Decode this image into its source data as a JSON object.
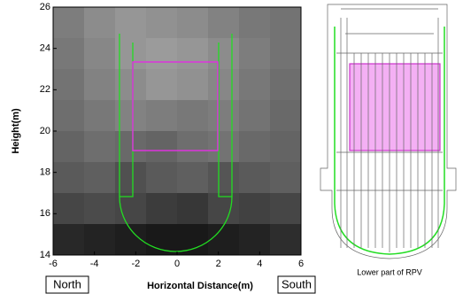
{
  "chart_data": {
    "type": "heatmap",
    "xlabel": "Horizontal Distance(m)",
    "ylabel": "Height(m)",
    "left_label": "North",
    "right_label": "South",
    "caption": "Lower part of RPV",
    "xlim": [
      -6,
      6
    ],
    "ylim": [
      14,
      26
    ],
    "xticks": [
      -6,
      -4,
      -2,
      0,
      2,
      4,
      6
    ],
    "yticks": [
      14,
      16,
      18,
      20,
      22,
      24,
      26
    ],
    "z": [
      [
        125,
        140,
        150,
        145,
        140,
        130,
        120,
        115
      ],
      [
        120,
        135,
        150,
        155,
        150,
        140,
        125,
        115
      ],
      [
        115,
        130,
        140,
        150,
        145,
        135,
        120,
        110
      ],
      [
        110,
        120,
        130,
        125,
        120,
        125,
        115,
        105
      ],
      [
        100,
        110,
        105,
        100,
        110,
        115,
        105,
        100
      ],
      [
        90,
        95,
        80,
        90,
        95,
        85,
        90,
        95
      ],
      [
        70,
        75,
        70,
        60,
        55,
        70,
        65,
        70
      ],
      [
        40,
        35,
        30,
        25,
        25,
        30,
        35,
        45
      ]
    ]
  }
}
